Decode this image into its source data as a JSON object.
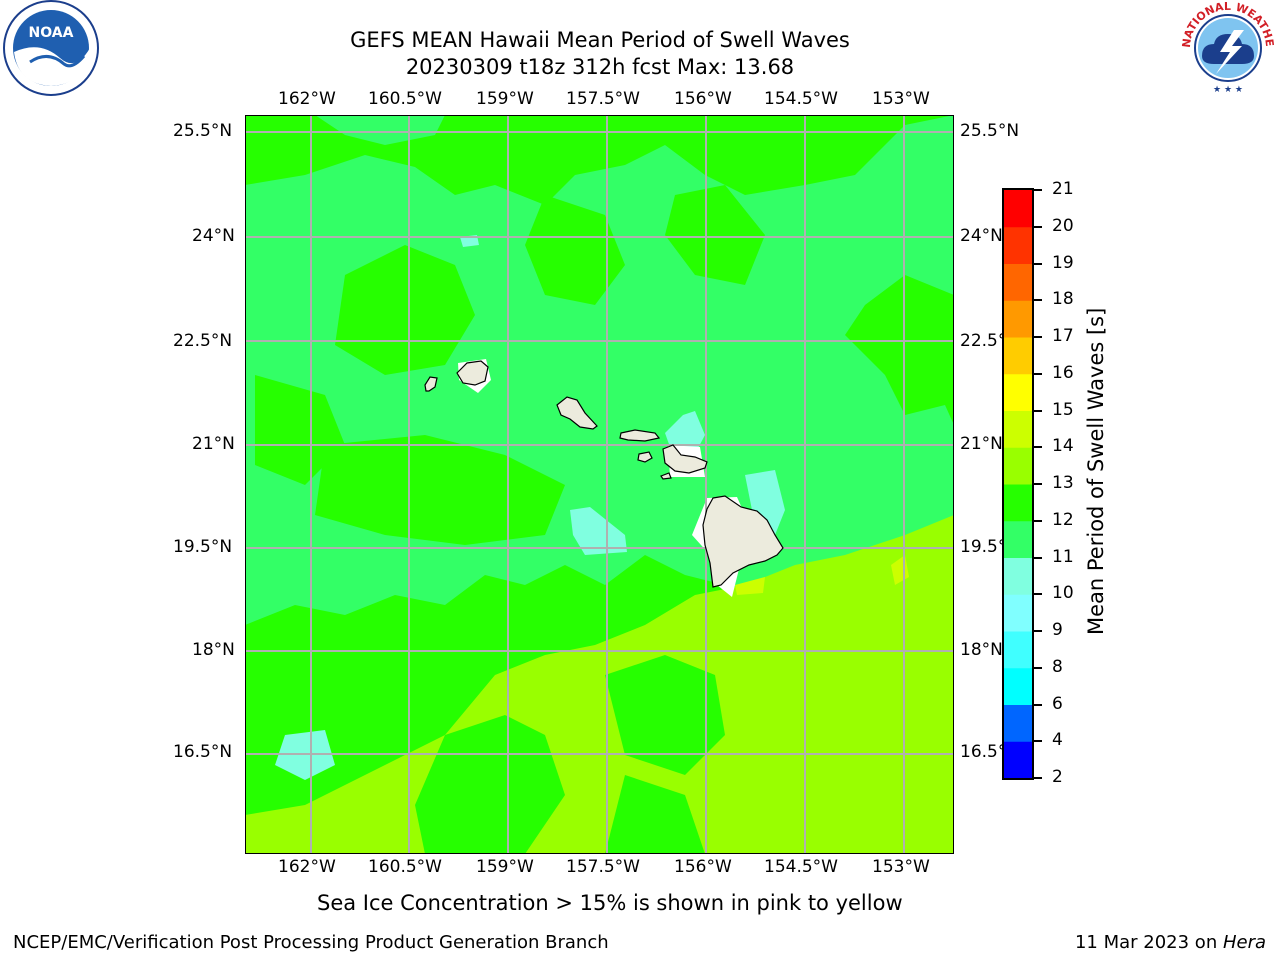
{
  "header": {
    "title_line1": "GEFS MEAN Hawaii Mean Period of Swell Waves",
    "title_line2": "20230309 t18z 312h fcst   Max: 13.68"
  },
  "logos": {
    "noaa_text": "NOAA",
    "nws_arc_text": "NATIONAL WEATHER SERVICE"
  },
  "map": {
    "lon_labels": [
      "162°W",
      "160.5°W",
      "159°W",
      "157.5°W",
      "156°W",
      "154.5°W",
      "153°W"
    ],
    "lat_labels": [
      "25.5°N",
      "24°N",
      "22.5°N",
      "21°N",
      "19.5°N",
      "18°N",
      "16.5°N"
    ],
    "colors": {
      "band_9_10": "#80ffe0",
      "band_10_11": "#33ff66",
      "band_11_12": "#26ff00",
      "band_12_13": "#99ff00",
      "band_13_14": "#ccff00",
      "land": "#ecebdd",
      "grid": "#b0b0b0"
    },
    "note": "Sea Ice Concentration > 15% is shown in pink to yellow"
  },
  "colorbar": {
    "label": "Mean Period of Swell Waves [s]",
    "ticks": [
      "2",
      "4",
      "6",
      "8",
      "9",
      "10",
      "11",
      "12",
      "13",
      "14",
      "15",
      "16",
      "17",
      "18",
      "19",
      "20",
      "21"
    ],
    "colors": [
      "#0000ff",
      "#0066ff",
      "#00ffff",
      "#40ffff",
      "#80ffff",
      "#80ffe0",
      "#33ff66",
      "#26ff00",
      "#99ff00",
      "#ccff00",
      "#ffff00",
      "#ffcc00",
      "#ff9900",
      "#ff6600",
      "#ff3300",
      "#ff0000"
    ]
  },
  "footer": {
    "left": "NCEP/EMC/Verification Post Processing Product Generation Branch",
    "right_date": "11 Mar 2023 on ",
    "right_host": "Hera"
  }
}
